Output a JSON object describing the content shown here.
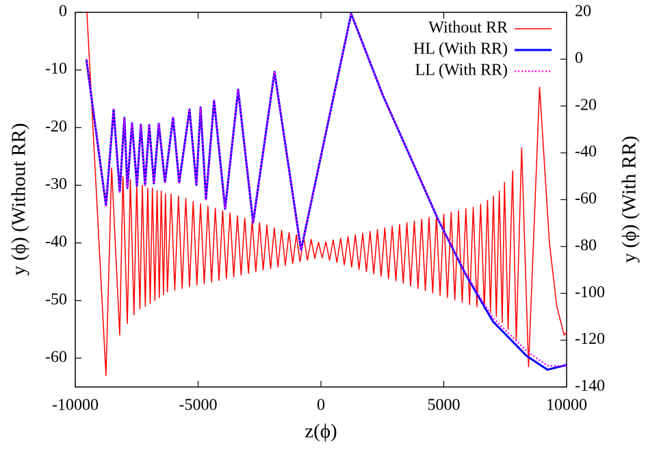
{
  "chart_data": {
    "type": "line",
    "xlabel": "z(ϕ)",
    "ylabel": "y (ϕ) (Without RR)",
    "y2label": "y (ϕ) (With RR)",
    "xlim": [
      -10000,
      10000
    ],
    "xticks": [
      -10000,
      -5000,
      0,
      5000,
      10000
    ],
    "ylim": [
      -65,
      0
    ],
    "yticks": [
      0,
      -10,
      -20,
      -30,
      -40,
      -50,
      -60
    ],
    "y2lim": [
      -140,
      20
    ],
    "y2ticks": [
      20,
      0,
      -20,
      -40,
      -60,
      -80,
      -100,
      -120,
      -140
    ],
    "legend": "upper right",
    "series": [
      {
        "name": "Without RR",
        "color": "#ff0000",
        "axis": "y",
        "style": "solid",
        "x": [
          -9526,
          -8750,
          -8520,
          -8190,
          -8060,
          -7880,
          -7760,
          -7610,
          -7500,
          -7370,
          -7270,
          -7150,
          -7050,
          -6950,
          -6860,
          -6760,
          -6670,
          -6580,
          -6500,
          -6410,
          -6330,
          -6250,
          -6100,
          -5950,
          -5800,
          -5650,
          -5500,
          -5350,
          -5200,
          -5050,
          -4900,
          -4750,
          -4600,
          -4450,
          -4300,
          -4150,
          -4000,
          -3850,
          -3700,
          -3550,
          -3400,
          -3250,
          -3100,
          -2950,
          -2800,
          -2650,
          -2500,
          -2350,
          -2200,
          -2050,
          -1900,
          -1750,
          -1600,
          -1450,
          -1300,
          -1150,
          -1000,
          -850,
          -700,
          -550,
          -400,
          -250,
          -100,
          50,
          200,
          350,
          500,
          650,
          800,
          950,
          1100,
          1250,
          1400,
          1550,
          1700,
          1850,
          2000,
          2150,
          2300,
          2450,
          2600,
          2750,
          2900,
          3050,
          3200,
          3350,
          3500,
          3650,
          3800,
          3950,
          4100,
          4250,
          4400,
          4550,
          4700,
          4850,
          5000,
          5150,
          5300,
          5450,
          5600,
          5750,
          5900,
          6050,
          6200,
          6350,
          6500,
          6650,
          6780,
          6900,
          7020,
          7140,
          7260,
          7380,
          7470,
          7620,
          7800,
          7950,
          8170,
          8450,
          8900,
          9300,
          9600,
          9900,
          10000
        ],
        "values": [
          0,
          -63,
          -27,
          -56,
          -28.5,
          -54,
          -29,
          -52.5,
          -29.5,
          -51.5,
          -30,
          -51,
          -30.5,
          -50.5,
          -30.5,
          -50,
          -31,
          -49.5,
          -31,
          -49,
          -31.5,
          -48.5,
          -31.5,
          -48.2,
          -31.9,
          -47.9,
          -32.3,
          -47.6,
          -32.8,
          -47.3,
          -33.2,
          -47.1,
          -33.6,
          -46.8,
          -34.0,
          -46.5,
          -34.4,
          -46.2,
          -34.8,
          -45.9,
          -35.3,
          -45.6,
          -35.7,
          -45.3,
          -36.1,
          -45.0,
          -36.5,
          -44.7,
          -36.9,
          -44.5,
          -37.4,
          -44.2,
          -37.8,
          -43.9,
          -38.2,
          -43.6,
          -38.6,
          -43.3,
          -39.0,
          -43.0,
          -39.4,
          -42.7,
          -39.9,
          -42.6,
          -39.8,
          -43.0,
          -39.5,
          -43.4,
          -39.2,
          -43.8,
          -38.9,
          -44.2,
          -38.6,
          -44.6,
          -38.3,
          -45.0,
          -38.0,
          -45.4,
          -37.7,
          -45.8,
          -37.4,
          -46.2,
          -37.1,
          -46.6,
          -36.8,
          -47.0,
          -36.5,
          -47.5,
          -36.2,
          -47.9,
          -35.9,
          -48.3,
          -35.6,
          -48.7,
          -35.3,
          -49.1,
          -35.0,
          -49.5,
          -34.7,
          -49.9,
          -34.4,
          -50.3,
          -34.1,
          -50.7,
          -33.8,
          -51.1,
          -33.3,
          -51.5,
          -32.6,
          -52.0,
          -31.9,
          -52.8,
          -31,
          -53.8,
          -29.5,
          -55,
          -27.5,
          -57,
          -23.5,
          -61.5,
          -13,
          -40,
          -51,
          -56,
          -55.5
        ]
      },
      {
        "name": "HL (With RR)",
        "color": "#0000ff",
        "axis": "y2",
        "style": "thick",
        "x": [
          -9550,
          -8750,
          -8440,
          -8190,
          -8000,
          -7880,
          -7690,
          -7490,
          -7330,
          -7160,
          -6990,
          -6800,
          -6600,
          -6350,
          -6020,
          -5770,
          -5350,
          -5070,
          -4900,
          -4680,
          -4350,
          -3900,
          -3370,
          -2760,
          -1890,
          -810,
          1230,
          2530,
          3650,
          4760,
          5880,
          7000,
          8380,
          9220,
          10000
        ],
        "values": [
          0,
          -62.5,
          -21.5,
          -56.6,
          -25,
          -55,
          -27.4,
          -54,
          -28,
          -53.7,
          -28.2,
          -53,
          -27.6,
          -52.5,
          -25,
          -52.7,
          -21.5,
          -53.7,
          -20.6,
          -59.8,
          -17.7,
          -63.9,
          -13,
          -69.8,
          -5.4,
          -81.5,
          19.4,
          -15.7,
          -42,
          -68.3,
          -91.7,
          -112,
          -126.8,
          -132.6,
          -130.6
        ]
      },
      {
        "name": "LL (With RR)",
        "color": "#ff00ff",
        "axis": "y2",
        "style": "dotted",
        "x": [
          -9550,
          -8750,
          -8440,
          -8190,
          -8000,
          -7880,
          -7690,
          -7490,
          -7330,
          -7160,
          -6990,
          -6800,
          -6600,
          -6350,
          -6020,
          -5770,
          -5350,
          -5070,
          -4900,
          -4680,
          -4350,
          -3900,
          -3370,
          -2760,
          -1890,
          -810,
          1230,
          2530,
          3650,
          4760,
          5880,
          7000,
          8380,
          9220,
          10000
        ],
        "values": [
          0,
          -62.5,
          -21.5,
          -56.6,
          -25,
          -55,
          -27.4,
          -54,
          -28,
          -53.7,
          -28.2,
          -53,
          -27.6,
          -52.5,
          -25,
          -52.7,
          -21.5,
          -53.7,
          -20.6,
          -59.8,
          -17.7,
          -63.9,
          -13,
          -69.8,
          -5.4,
          -81.5,
          19.4,
          -15.7,
          -42,
          -68.3,
          -91.2,
          -110.5,
          -124.7,
          -130.9,
          -131
        ]
      }
    ]
  }
}
